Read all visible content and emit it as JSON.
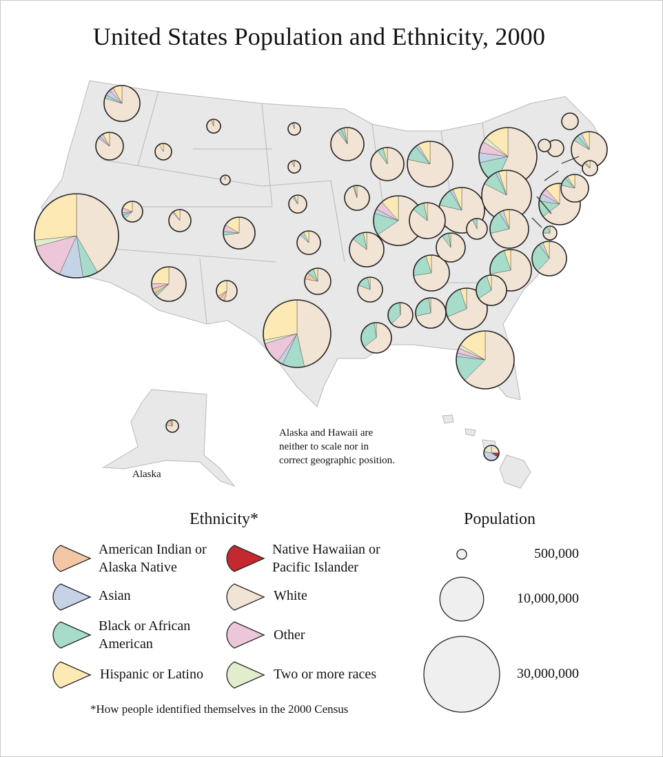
{
  "title": "United States Population and Ethnicity, 2000",
  "map": {
    "note": "Alaska and Hawaii are neither to scale nor in correct geographic position.",
    "alaska_label": "Alaska",
    "state_fill": "#e8e8e8",
    "state_stroke": "#b8b8b8"
  },
  "ethnicity_legend": {
    "title": "Ethnicity*",
    "items": [
      {
        "key": "american_indian",
        "label": "American Indian or Alaska Native",
        "color": "#f4c7a4"
      },
      {
        "key": "asian",
        "label": "Asian",
        "color": "#c6d2e6"
      },
      {
        "key": "black",
        "label": "Black or African American",
        "color": "#a6dcc9"
      },
      {
        "key": "hispanic",
        "label": "Hispanic or Latino",
        "color": "#fde9b3"
      },
      {
        "key": "native_hawaiian",
        "label": "Native Hawaiian or Pacific Islander",
        "color": "#c4292f"
      },
      {
        "key": "white",
        "label": "White",
        "color": "#f2e4d5"
      },
      {
        "key": "other",
        "label": "Other",
        "color": "#ecc7d9"
      },
      {
        "key": "two_or_more",
        "label": "Two or more races",
        "color": "#e2edce"
      }
    ],
    "footnote": "*How people identified themselves in the 2000 Census"
  },
  "population_legend": {
    "title": "Population",
    "items": [
      {
        "value": 500000,
        "label": "500,000"
      },
      {
        "value": 10000000,
        "label": "10,000,000"
      },
      {
        "value": 30000000,
        "label": "30,000,000"
      }
    ]
  }
}
